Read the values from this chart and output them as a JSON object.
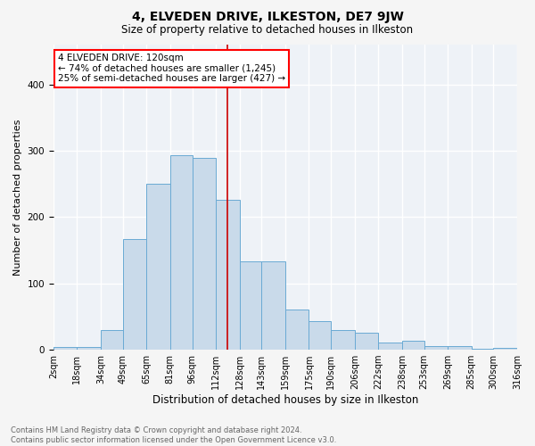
{
  "title": "4, ELVEDEN DRIVE, ILKESTON, DE7 9JW",
  "subtitle": "Size of property relative to detached houses in Ilkeston",
  "xlabel": "Distribution of detached houses by size in Ilkeston",
  "ylabel": "Number of detached properties",
  "footer": "Contains HM Land Registry data © Crown copyright and database right 2024.\nContains public sector information licensed under the Open Government Licence v3.0.",
  "annotation_line1": "4 ELVEDEN DRIVE: 120sqm",
  "annotation_line2": "← 74% of detached houses are smaller (1,245)",
  "annotation_line3": "25% of semi-detached houses are larger (427) →",
  "bar_color": "#c9daea",
  "bar_edge_color": "#6aaad4",
  "vline_color": "#cc0000",
  "vline_x": 120,
  "bins": [
    2,
    18,
    34,
    49,
    65,
    81,
    96,
    112,
    128,
    143,
    159,
    175,
    190,
    206,
    222,
    238,
    253,
    269,
    285,
    300,
    316
  ],
  "counts": [
    4,
    4,
    30,
    167,
    250,
    293,
    289,
    226,
    133,
    133,
    60,
    43,
    30,
    25,
    11,
    14,
    5,
    5,
    1,
    3
  ],
  "background_color": "#eef2f7",
  "grid_color": "#ffffff",
  "fig_background": "#f5f5f5",
  "ylim": [
    0,
    460
  ],
  "title_fontsize": 10,
  "subtitle_fontsize": 8.5,
  "ylabel_fontsize": 8,
  "xlabel_fontsize": 8.5,
  "tick_fontsize": 7,
  "footer_fontsize": 6,
  "annotation_fontsize": 7.5
}
